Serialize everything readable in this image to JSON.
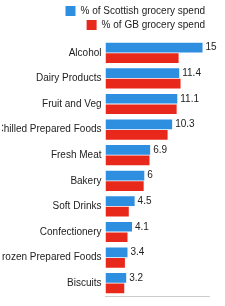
{
  "chart_data": {
    "type": "bar",
    "orientation": "horizontal",
    "categories": [
      "Alcohol",
      "Dairy Products",
      "Fruit and Veg",
      "Chilled Prepared Foods",
      "Fresh Meat",
      "Bakery",
      "Soft Drinks",
      "Confectionery",
      "Frozen Prepared Foods",
      "Biscuits"
    ],
    "series": [
      {
        "name": "% of Scottish grocery spend",
        "color": "#2e8ee0",
        "values": [
          15,
          11.4,
          11.1,
          10.3,
          6.9,
          6,
          4.5,
          4.1,
          3.4,
          3.2
        ],
        "data_labels": true
      },
      {
        "name": "% of GB grocery spend",
        "color": "#e8281b",
        "values": [
          11.3,
          11.6,
          11.0,
          9.6,
          6.8,
          5.9,
          3.6,
          3.4,
          3.0,
          2.9
        ],
        "data_labels": false
      }
    ],
    "xlim": [
      0,
      16
    ],
    "tick_labels": "y",
    "legend": "top",
    "grid": false
  }
}
